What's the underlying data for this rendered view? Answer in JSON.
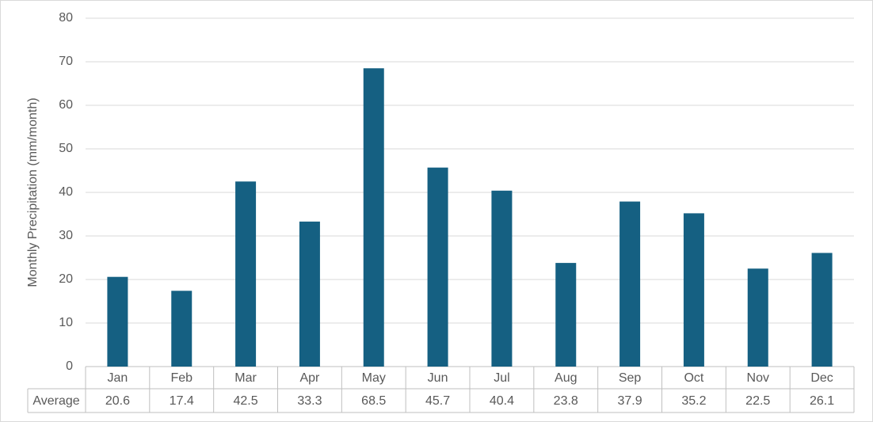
{
  "chart_data": {
    "type": "bar",
    "y_label": "Monthly Precipitation (mm/month)",
    "categories": [
      "Jan",
      "Feb",
      "Mar",
      "Apr",
      "May",
      "Jun",
      "Jul",
      "Aug",
      "Sep",
      "Oct",
      "Nov",
      "Dec"
    ],
    "series": [
      {
        "name": "Average",
        "color": "#156082",
        "values": [
          20.6,
          17.4,
          42.5,
          33.3,
          68.5,
          45.7,
          40.4,
          23.8,
          37.9,
          35.2,
          22.5,
          26.1
        ]
      }
    ],
    "ylim": [
      0,
      80
    ],
    "yticks": [
      0,
      10,
      20,
      30,
      40,
      50,
      60,
      70,
      80
    ],
    "grid": true,
    "data_table": true
  }
}
